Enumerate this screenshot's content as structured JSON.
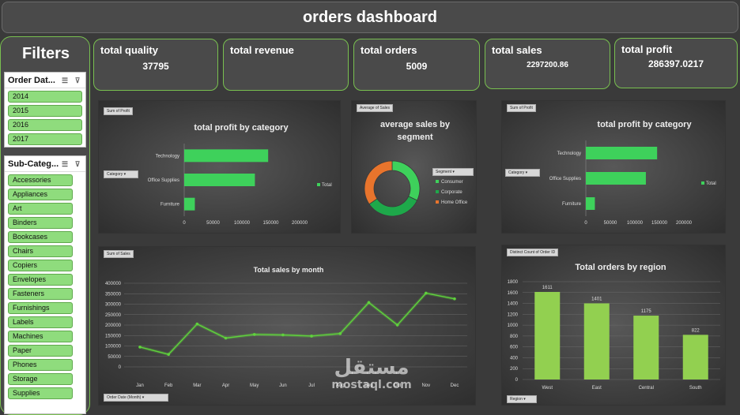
{
  "header": {
    "title": "orders dashboard"
  },
  "filters": {
    "title": "Filters",
    "order_date": {
      "title": "Order Dat...",
      "items": [
        "2014",
        "2015",
        "2016",
        "2017"
      ]
    },
    "sub_category": {
      "title": "Sub-Categ...",
      "items": [
        "Accessories",
        "Appliances",
        "Art",
        "Binders",
        "Bookcases",
        "Chairs",
        "Copiers",
        "Envelopes",
        "Fasteners",
        "Furnishings",
        "Labels",
        "Machines",
        "Paper",
        "Phones",
        "Storage",
        "Supplies"
      ]
    }
  },
  "kpis": [
    {
      "label": "total quality",
      "value": "37795"
    },
    {
      "label": "total revenue",
      "value": ""
    },
    {
      "label": "total orders",
      "value": "5009"
    },
    {
      "label": "total sales",
      "value": "2297200.86"
    },
    {
      "label": "total profit",
      "value": "286397.0217"
    }
  ],
  "colors": {
    "accent": "#79c050",
    "bar_green": "#3ed15b",
    "region_bar": "#92d050",
    "line": "#5fd23c",
    "donut": [
      "#3ed15b",
      "#1ea84a",
      "#e8742c"
    ]
  },
  "chart_data": [
    {
      "type": "bar",
      "orientation": "horizontal",
      "tag": "Sum of Profit",
      "filter_label": "Category",
      "title": "total profit by category",
      "categories": [
        "Technology",
        "Office Supplies",
        "Furniture"
      ],
      "values": [
        145455,
        122491,
        18451
      ],
      "legend": [
        "Total"
      ],
      "xlim": [
        0,
        200000
      ],
      "x_ticks": [
        "0",
        "50000",
        "100000",
        "150000",
        "200000"
      ]
    },
    {
      "type": "pie",
      "donut": true,
      "tag": "Average of Sales",
      "filter_label": "Segment",
      "title": "average sales by segment",
      "categories": [
        "Consumer",
        "Corporate",
        "Home Office"
      ],
      "values": [
        223.7,
        233.8,
        240.97
      ]
    },
    {
      "type": "bar",
      "orientation": "horizontal",
      "tag": "Sum of Profit",
      "filter_label": "Category",
      "title": "total profit by category",
      "categories": [
        "Technology",
        "Office Supplies",
        "Furniture"
      ],
      "values": [
        145455,
        122491,
        18451
      ],
      "legend": [
        "Total"
      ],
      "xlim": [
        0,
        200000
      ],
      "x_ticks": [
        "0",
        "50000",
        "100000",
        "150000",
        "200000"
      ]
    },
    {
      "type": "line",
      "tag": "Sum of Sales",
      "filter_label": "Order Date (Month)",
      "title": "Total sales by month",
      "categories": [
        "Jan",
        "Feb",
        "Mar",
        "Apr",
        "May",
        "Jun",
        "Jul",
        "Aug",
        "Sep",
        "Oct",
        "Nov",
        "Dec"
      ],
      "values": [
        94925,
        59751,
        205005,
        137762,
        155029,
        152718,
        147238,
        159044,
        307650,
        200323,
        352461,
        325294
      ],
      "ylim": [
        0,
        400000
      ],
      "y_ticks": [
        "0",
        "50000",
        "100000",
        "150000",
        "200000",
        "250000",
        "300000",
        "350000",
        "400000"
      ]
    },
    {
      "type": "bar",
      "tag": "Distinct Count of Order ID",
      "filter_label": "Region",
      "title": "Total orders by region",
      "categories": [
        "West",
        "East",
        "Central",
        "South"
      ],
      "values": [
        1611,
        1401,
        1175,
        822
      ],
      "ylim": [
        0,
        1800
      ],
      "y_ticks": [
        "0",
        "200",
        "400",
        "600",
        "800",
        "1000",
        "1200",
        "1400",
        "1600",
        "1800"
      ]
    }
  ],
  "watermark": {
    "arabic": "مستقل",
    "latin": "mostaql.com"
  }
}
